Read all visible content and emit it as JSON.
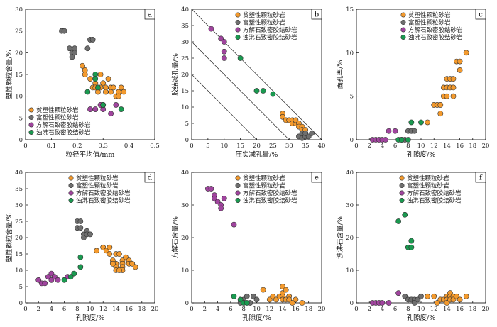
{
  "colors": {
    "poor_plastic": "#f39a2e",
    "rich_plastic": "#6f6f6f",
    "calcite": "#a0449e",
    "zeolite": "#1a9a50"
  },
  "legend_labels": [
    "贫塑性颗粒砂岩",
    "富塑性颗粒砂岩",
    "方解石致密胶结砂岩",
    "浊沸石致密胶结砂岩"
  ],
  "chart_data": [
    {
      "type": "scatter",
      "panel_label": "a",
      "xlabel": "粒径平均值/mm",
      "ylabel": "塑性颗粒含量/%",
      "xlim": [
        0,
        0.5
      ],
      "ylim": [
        0,
        30
      ],
      "xticks": [
        0,
        0.1,
        0.2,
        0.3,
        0.4,
        0.5
      ],
      "yticks": [
        0,
        5,
        10,
        15,
        20,
        25,
        30
      ],
      "legend": "bottom-left",
      "series": [
        {
          "name": "贫塑性颗粒砂岩",
          "points": [
            [
              0.22,
              17
            ],
            [
              0.23,
              16
            ],
            [
              0.23,
              15
            ],
            [
              0.25,
              14
            ],
            [
              0.26,
              12
            ],
            [
              0.27,
              13
            ],
            [
              0.27,
              12
            ],
            [
              0.28,
              11
            ],
            [
              0.29,
              15
            ],
            [
              0.29,
              12
            ],
            [
              0.3,
              13
            ],
            [
              0.31,
              12
            ],
            [
              0.31,
              11
            ],
            [
              0.32,
              14
            ],
            [
              0.33,
              12
            ],
            [
              0.33,
              11
            ],
            [
              0.34,
              12
            ],
            [
              0.35,
              10
            ],
            [
              0.36,
              11
            ],
            [
              0.36,
              10
            ],
            [
              0.37,
              12
            ],
            [
              0.38,
              11
            ]
          ]
        },
        {
          "name": "富塑性颗粒砂岩",
          "points": [
            [
              0.14,
              25
            ],
            [
              0.15,
              25
            ],
            [
              0.17,
              21
            ],
            [
              0.18,
              20
            ],
            [
              0.18,
              19
            ],
            [
              0.19,
              21
            ],
            [
              0.19,
              20
            ],
            [
              0.24,
              21
            ],
            [
              0.25,
              23
            ],
            [
              0.26,
              23
            ]
          ]
        },
        {
          "name": "方解石致密胶结砂岩",
          "points": [
            [
              0.25,
              7
            ],
            [
              0.27,
              7
            ],
            [
              0.29,
              8
            ],
            [
              0.3,
              7
            ],
            [
              0.3,
              8
            ],
            [
              0.33,
              6
            ],
            [
              0.35,
              8
            ]
          ]
        },
        {
          "name": "浊沸石致密胶结砂岩",
          "points": [
            [
              0.24,
              11
            ],
            [
              0.27,
              15
            ],
            [
              0.27,
              14
            ],
            [
              0.28,
              12
            ],
            [
              0.37,
              7
            ],
            [
              0.3,
              8
            ]
          ]
        }
      ]
    },
    {
      "type": "scatter",
      "panel_label": "b",
      "xlabel": "压实减孔量/%",
      "ylabel": "胶结减孔量/%",
      "xlim": [
        0,
        40
      ],
      "ylim": [
        0,
        40
      ],
      "xticks": [
        0,
        5,
        10,
        15,
        20,
        25,
        30,
        35,
        40
      ],
      "yticks": [
        0,
        5,
        10,
        15,
        20,
        25,
        30,
        35,
        40
      ],
      "legend": "top-right",
      "guide_line_sums": [
        20,
        30,
        40
      ],
      "series": [
        {
          "name": "贫塑性颗粒砂岩",
          "points": [
            [
              28,
              8
            ],
            [
              28,
              7
            ],
            [
              29,
              6
            ],
            [
              30,
              6
            ],
            [
              31,
              6
            ],
            [
              31,
              5
            ],
            [
              32,
              5
            ],
            [
              32,
              6
            ],
            [
              33,
              5
            ],
            [
              33,
              4
            ],
            [
              34,
              4
            ],
            [
              34,
              3
            ],
            [
              35,
              3
            ],
            [
              35,
              2
            ]
          ]
        },
        {
          "name": "富塑性颗粒砂岩",
          "points": [
            [
              33,
              1
            ],
            [
              34,
              0.5
            ],
            [
              34,
              2
            ],
            [
              35,
              1
            ],
            [
              35,
              2
            ],
            [
              36,
              1
            ],
            [
              37,
              2
            ]
          ]
        },
        {
          "name": "方解石致密胶结砂岩",
          "points": [
            [
              6,
              34
            ],
            [
              9,
              31
            ],
            [
              10,
              30
            ],
            [
              10,
              27
            ],
            [
              10,
              25
            ]
          ]
        },
        {
          "name": "浊沸石致密胶结砂岩",
          "points": [
            [
              15,
              25
            ],
            [
              20,
              15
            ],
            [
              22,
              15
            ],
            [
              25,
              14
            ]
          ]
        }
      ]
    },
    {
      "type": "scatter",
      "panel_label": "c",
      "xlabel": "孔隙度/%",
      "ylabel": "面孔率/%",
      "xlim": [
        0,
        20
      ],
      "ylim": [
        0,
        15
      ],
      "xticks": [
        0,
        2,
        4,
        6,
        8,
        10,
        12,
        14,
        16,
        18,
        20
      ],
      "yticks": [
        0,
        5,
        10,
        15
      ],
      "legend": "top-right",
      "series": [
        {
          "name": "贫塑性颗粒砂岩",
          "points": [
            [
              11,
              2
            ],
            [
              12,
              4
            ],
            [
              12.5,
              4
            ],
            [
              13,
              3
            ],
            [
              13,
              4
            ],
            [
              13.5,
              6
            ],
            [
              13.5,
              5
            ],
            [
              14,
              7
            ],
            [
              14,
              6
            ],
            [
              14,
              5
            ],
            [
              14.5,
              7
            ],
            [
              14.5,
              6
            ],
            [
              15,
              7
            ],
            [
              15,
              6
            ],
            [
              15,
              5
            ],
            [
              15.5,
              9
            ],
            [
              16,
              9
            ],
            [
              16,
              8
            ],
            [
              17,
              10
            ]
          ]
        },
        {
          "name": "富塑性颗粒砂岩",
          "points": [
            [
              7,
              0
            ],
            [
              7.5,
              0
            ],
            [
              8,
              1
            ],
            [
              8.5,
              1
            ],
            [
              9,
              1
            ]
          ]
        },
        {
          "name": "方解石致密胶结砂岩",
          "points": [
            [
              2.5,
              0
            ],
            [
              3,
              0
            ],
            [
              3.5,
              0
            ],
            [
              4,
              0
            ],
            [
              4.5,
              0
            ],
            [
              5,
              1
            ],
            [
              6,
              1
            ]
          ]
        },
        {
          "name": "浊沸石致密胶结砂岩",
          "points": [
            [
              6.5,
              0
            ],
            [
              7,
              0
            ],
            [
              8,
              0
            ],
            [
              8.5,
              2
            ],
            [
              10,
              2
            ]
          ]
        }
      ]
    },
    {
      "type": "scatter",
      "panel_label": "d",
      "xlabel": "孔隙度/%",
      "ylabel": "塑性颗粒含量/%",
      "xlim": [
        0,
        20
      ],
      "ylim": [
        0,
        40
      ],
      "xticks": [
        0,
        2,
        4,
        6,
        8,
        10,
        12,
        14,
        16,
        18,
        20
      ],
      "yticks": [
        0,
        5,
        10,
        15,
        20,
        25,
        30,
        35,
        40
      ],
      "legend": "top-right",
      "series": [
        {
          "name": "贫塑性颗粒砂岩",
          "points": [
            [
              11,
              16
            ],
            [
              12,
              17
            ],
            [
              12.5,
              16
            ],
            [
              13,
              17
            ],
            [
              13,
              15
            ],
            [
              13.5,
              13
            ],
            [
              14,
              15
            ],
            [
              14,
              12
            ],
            [
              14,
              11
            ],
            [
              14,
              10
            ],
            [
              14.5,
              15
            ],
            [
              15,
              13
            ],
            [
              15,
              12
            ],
            [
              15,
              11
            ],
            [
              15,
              10
            ],
            [
              15.5,
              14
            ],
            [
              16,
              13
            ],
            [
              16,
              12
            ],
            [
              16.5,
              12
            ],
            [
              17,
              11
            ],
            [
              13.5,
              12
            ],
            [
              14.5,
              10
            ]
          ]
        },
        {
          "name": "富塑性颗粒砂岩",
          "points": [
            [
              8,
              25
            ],
            [
              8,
              23
            ],
            [
              8.5,
              25
            ],
            [
              8.5,
              23
            ],
            [
              9,
              21
            ],
            [
              9,
              20
            ],
            [
              9.5,
              22
            ],
            [
              9.5,
              21
            ],
            [
              10,
              21
            ]
          ]
        },
        {
          "name": "方解石致密胶结砂岩",
          "points": [
            [
              2,
              7
            ],
            [
              2.5,
              6
            ],
            [
              3,
              6
            ],
            [
              3.5,
              8
            ],
            [
              4,
              9
            ],
            [
              4,
              7
            ],
            [
              4.5,
              8
            ],
            [
              5,
              7
            ],
            [
              6.5,
              8
            ]
          ]
        },
        {
          "name": "浊沸石致密胶结砂岩",
          "points": [
            [
              6,
              7
            ],
            [
              7,
              8
            ],
            [
              7.5,
              9
            ],
            [
              8.5,
              14
            ],
            [
              8.5,
              11
            ]
          ]
        }
      ]
    },
    {
      "type": "scatter",
      "panel_label": "e",
      "xlabel": "孔隙度/%",
      "ylabel": "方解石含量/%",
      "xlim": [
        0,
        20
      ],
      "ylim": [
        0,
        40
      ],
      "xticks": [
        0,
        2,
        4,
        6,
        8,
        10,
        12,
        14,
        16,
        18,
        20
      ],
      "yticks": [
        0,
        10,
        20,
        30,
        40
      ],
      "legend": "top-right",
      "series": [
        {
          "name": "贫塑性颗粒砂岩",
          "points": [
            [
              11,
              4
            ],
            [
              12,
              1
            ],
            [
              12.5,
              2
            ],
            [
              13,
              1
            ],
            [
              13.5,
              2
            ],
            [
              14,
              5
            ],
            [
              14,
              3
            ],
            [
              14,
              2
            ],
            [
              14,
              1
            ],
            [
              14.5,
              4
            ],
            [
              14.5,
              1
            ],
            [
              15,
              2
            ],
            [
              15,
              1
            ],
            [
              15.5,
              0
            ],
            [
              16,
              1
            ],
            [
              17,
              0
            ]
          ]
        },
        {
          "name": "富塑性颗粒砂岩",
          "points": [
            [
              7.5,
              0
            ],
            [
              8,
              1
            ],
            [
              8.5,
              2
            ],
            [
              9,
              0
            ],
            [
              9.5,
              2
            ],
            [
              10,
              1
            ]
          ]
        },
        {
          "name": "方解石致密胶结砂岩",
          "points": [
            [
              2.5,
              35
            ],
            [
              3,
              35
            ],
            [
              3.5,
              33
            ],
            [
              3.5,
              32
            ],
            [
              4,
              31
            ],
            [
              4.5,
              30
            ],
            [
              5,
              32
            ],
            [
              4.5,
              29
            ],
            [
              6.5,
              24
            ]
          ]
        },
        {
          "name": "浊沸石致密胶结砂岩",
          "points": [
            [
              6.5,
              2
            ],
            [
              7.5,
              1
            ],
            [
              8,
              0
            ],
            [
              8.5,
              0
            ]
          ]
        }
      ]
    },
    {
      "type": "scatter",
      "panel_label": "f",
      "xlabel": "孔隙度/%",
      "ylabel": "浊沸石含量/%",
      "xlim": [
        0,
        20
      ],
      "ylim": [
        0,
        40
      ],
      "xticks": [
        0,
        2,
        4,
        6,
        8,
        10,
        12,
        14,
        16,
        18,
        20
      ],
      "yticks": [
        0,
        10,
        20,
        30,
        40
      ],
      "legend": "top-right",
      "series": [
        {
          "name": "贫塑性颗粒砂岩",
          "points": [
            [
              11,
              2
            ],
            [
              12,
              2
            ],
            [
              12.5,
              0
            ],
            [
              13,
              1
            ],
            [
              13.5,
              1
            ],
            [
              14,
              2
            ],
            [
              14,
              1
            ],
            [
              14,
              0
            ],
            [
              14.5,
              3
            ],
            [
              14.5,
              2
            ],
            [
              14.5,
              1
            ],
            [
              15,
              2
            ],
            [
              15,
              1
            ],
            [
              15.5,
              2
            ],
            [
              16,
              1
            ],
            [
              17,
              2
            ]
          ]
        },
        {
          "name": "富塑性颗粒砂岩",
          "points": [
            [
              7.5,
              2
            ],
            [
              8,
              1
            ],
            [
              8.5,
              1
            ],
            [
              9,
              1
            ],
            [
              9,
              0
            ],
            [
              9.5,
              1
            ],
            [
              10,
              2
            ]
          ]
        },
        {
          "name": "方解石致密胶结砂岩",
          "points": [
            [
              2.5,
              0
            ],
            [
              3,
              0
            ],
            [
              3.5,
              0
            ],
            [
              4,
              0
            ],
            [
              5,
              0
            ],
            [
              6.5,
              3
            ]
          ]
        },
        {
          "name": "浊沸石致密胶结砂岩",
          "points": [
            [
              6.5,
              25
            ],
            [
              7.5,
              27
            ],
            [
              8,
              17
            ],
            [
              8.5,
              19
            ],
            [
              8.5,
              17
            ]
          ]
        }
      ]
    }
  ]
}
